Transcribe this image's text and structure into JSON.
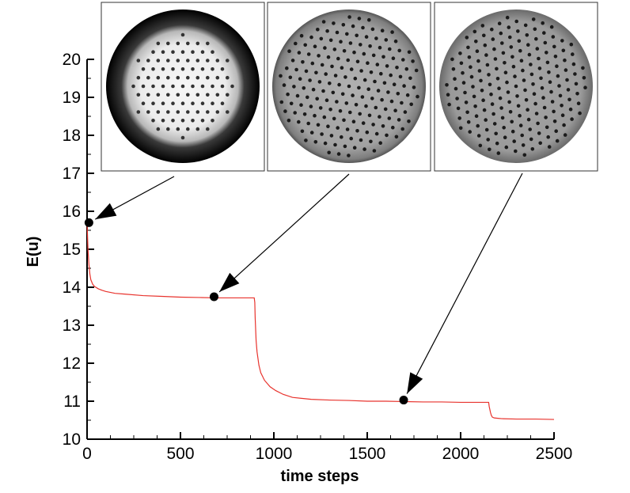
{
  "chart_data": {
    "type": "line",
    "xlabel": "time steps",
    "ylabel": "E(u)",
    "xlim": [
      0,
      2500
    ],
    "ylim": [
      10,
      20
    ],
    "x_ticks": [
      0,
      500,
      1000,
      1500,
      2000,
      2500
    ],
    "y_ticks": [
      10,
      11,
      12,
      13,
      14,
      15,
      16,
      17,
      18,
      19,
      20
    ],
    "grid": false,
    "series": [
      {
        "color": "#e8332d",
        "x": [
          0,
          5,
          10,
          15,
          20,
          30,
          40,
          60,
          80,
          100,
          150,
          200,
          300,
          400,
          500,
          600,
          700,
          800,
          895,
          898,
          900,
          905,
          910,
          920,
          930,
          950,
          980,
          1010,
          1050,
          1100,
          1200,
          1300,
          1400,
          1500,
          1600,
          1700,
          1800,
          1900,
          2000,
          2100,
          2150,
          2153,
          2160,
          2165,
          2170,
          2180,
          2200,
          2220,
          2300,
          2400,
          2500
        ],
        "y": [
          15.7,
          15.0,
          14.6,
          14.35,
          14.2,
          14.08,
          14.02,
          13.96,
          13.92,
          13.89,
          13.84,
          13.82,
          13.78,
          13.76,
          13.74,
          13.73,
          13.72,
          13.72,
          13.72,
          13.6,
          13.2,
          12.6,
          12.3,
          11.95,
          11.75,
          11.55,
          11.38,
          11.28,
          11.18,
          11.1,
          11.05,
          11.03,
          11.02,
          11.0,
          11.0,
          10.99,
          10.98,
          10.98,
          10.97,
          10.97,
          10.97,
          10.86,
          10.7,
          10.62,
          10.58,
          10.56,
          10.55,
          10.54,
          10.53,
          10.53,
          10.52
        ]
      }
    ],
    "markers": [
      {
        "x": 10,
        "y": 15.7
      },
      {
        "x": 680,
        "y": 13.75
      },
      {
        "x": 1695,
        "y": 11.03
      }
    ]
  },
  "insets": [
    {
      "name": "snapshot-t0",
      "background": "#000000",
      "disc_gray": "#f2f2f2",
      "edge": "dark-ring",
      "dot_color": "#333333"
    },
    {
      "name": "snapshot-t680",
      "background": "#7a7a7a",
      "disc_gray": "#a6a6a6",
      "edge": "gray",
      "dot_color": "#1a1a1a"
    },
    {
      "name": "snapshot-t1695",
      "background": "#7f7f7f",
      "disc_gray": "#9d9d9d",
      "edge": "gray",
      "dot_color": "#1a1a1a"
    }
  ]
}
